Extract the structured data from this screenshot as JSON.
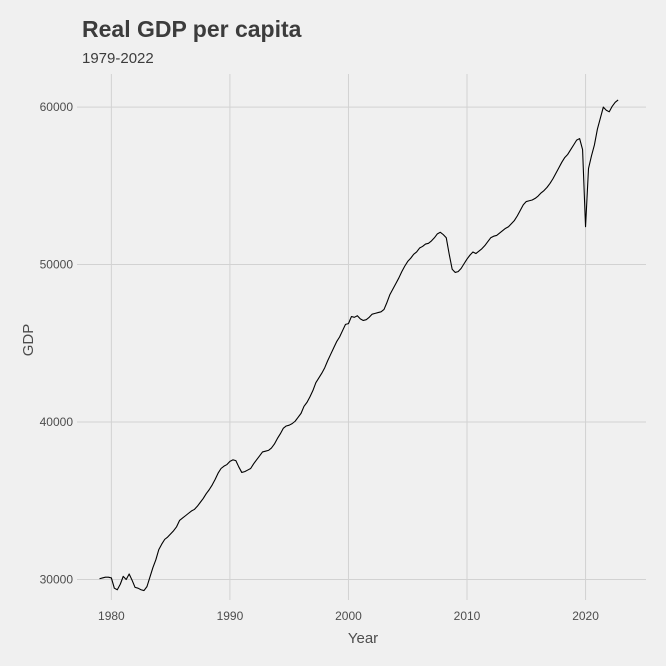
{
  "chart_data": {
    "type": "line",
    "title": "Real GDP per capita",
    "subtitle": "1979-2022",
    "xlabel": "Year",
    "ylabel": "GDP",
    "xlim": [
      1977.1,
      2025.1
    ],
    "ylim": [
      28700,
      62100
    ],
    "x_ticks": [
      1980,
      1990,
      2000,
      2010,
      2020
    ],
    "y_ticks": [
      30000,
      40000,
      50000,
      60000
    ],
    "grid": true,
    "legend": "none",
    "line_color": "#000000",
    "series": [
      {
        "x": [
          1979.0,
          1979.25,
          1979.5,
          1979.75,
          1980.0,
          1980.25,
          1980.5,
          1980.75,
          1981.0,
          1981.25,
          1981.5,
          1981.75,
          1982.0,
          1982.25,
          1982.5,
          1982.75,
          1983.0,
          1983.25,
          1983.5,
          1983.75,
          1984.0,
          1984.25,
          1984.5,
          1984.75,
          1985.0,
          1985.25,
          1985.5,
          1985.75,
          1986.0,
          1986.25,
          1986.5,
          1986.75,
          1987.0,
          1987.25,
          1987.5,
          1987.75,
          1988.0,
          1988.25,
          1988.5,
          1988.75,
          1989.0,
          1989.25,
          1989.5,
          1989.75,
          1990.0,
          1990.25,
          1990.5,
          1990.75,
          1991.0,
          1991.25,
          1991.5,
          1991.75,
          1992.0,
          1992.25,
          1992.5,
          1992.75,
          1993.0,
          1993.25,
          1993.5,
          1993.75,
          1994.0,
          1994.25,
          1994.5,
          1994.75,
          1995.0,
          1995.25,
          1995.5,
          1995.75,
          1996.0,
          1996.25,
          1996.5,
          1996.75,
          1997.0,
          1997.25,
          1997.5,
          1997.75,
          1998.0,
          1998.25,
          1998.5,
          1998.75,
          1999.0,
          1999.25,
          1999.5,
          1999.75,
          2000.0,
          2000.25,
          2000.5,
          2000.75,
          2001.0,
          2001.25,
          2001.5,
          2001.75,
          2002.0,
          2002.25,
          2002.5,
          2002.75,
          2003.0,
          2003.25,
          2003.5,
          2003.75,
          2004.0,
          2004.25,
          2004.5,
          2004.75,
          2005.0,
          2005.25,
          2005.5,
          2005.75,
          2006.0,
          2006.25,
          2006.5,
          2006.75,
          2007.0,
          2007.25,
          2007.5,
          2007.75,
          2008.0,
          2008.25,
          2008.5,
          2008.75,
          2009.0,
          2009.25,
          2009.5,
          2009.75,
          2010.0,
          2010.25,
          2010.5,
          2010.75,
          2011.0,
          2011.25,
          2011.5,
          2011.75,
          2012.0,
          2012.25,
          2012.5,
          2012.75,
          2013.0,
          2013.25,
          2013.5,
          2013.75,
          2014.0,
          2014.25,
          2014.5,
          2014.75,
          2015.0,
          2015.25,
          2015.5,
          2015.75,
          2016.0,
          2016.25,
          2016.5,
          2016.75,
          2017.0,
          2017.25,
          2017.5,
          2017.75,
          2018.0,
          2018.25,
          2018.5,
          2018.75,
          2019.0,
          2019.25,
          2019.5,
          2019.75,
          2020.0,
          2020.25,
          2020.5,
          2020.75,
          2021.0,
          2021.25,
          2021.5,
          2021.75,
          2022.0,
          2022.25,
          2022.5,
          2022.75
        ],
        "y": [
          30050,
          30100,
          30150,
          30150,
          30100,
          29450,
          29350,
          29700,
          30200,
          30000,
          30350,
          29950,
          29500,
          29450,
          29350,
          29300,
          29550,
          30150,
          30750,
          31250,
          31900,
          32250,
          32550,
          32700,
          32900,
          33100,
          33350,
          33750,
          33900,
          34050,
          34200,
          34350,
          34450,
          34650,
          34900,
          35150,
          35450,
          35700,
          36000,
          36350,
          36750,
          37050,
          37200,
          37300,
          37500,
          37600,
          37550,
          37150,
          36800,
          36850,
          36950,
          37050,
          37350,
          37600,
          37850,
          38100,
          38150,
          38200,
          38350,
          38600,
          38950,
          39250,
          39600,
          39750,
          39800,
          39900,
          40050,
          40300,
          40550,
          41000,
          41250,
          41600,
          42000,
          42500,
          42800,
          43100,
          43450,
          43900,
          44300,
          44700,
          45100,
          45400,
          45800,
          46200,
          46250,
          46700,
          46650,
          46750,
          46550,
          46450,
          46500,
          46650,
          46850,
          46900,
          46950,
          47000,
          47150,
          47600,
          48100,
          48450,
          48800,
          49150,
          49550,
          49900,
          50200,
          50400,
          50650,
          50800,
          51050,
          51150,
          51300,
          51350,
          51500,
          51700,
          51950,
          52050,
          51900,
          51700,
          50650,
          49700,
          49500,
          49550,
          49750,
          50050,
          50350,
          50600,
          50800,
          50700,
          50850,
          51000,
          51200,
          51450,
          51700,
          51800,
          51850,
          52000,
          52150,
          52300,
          52400,
          52600,
          52800,
          53100,
          53450,
          53800,
          54000,
          54050,
          54100,
          54200,
          54350,
          54550,
          54700,
          54900,
          55150,
          55450,
          55800,
          56150,
          56500,
          56800,
          57000,
          57300,
          57600,
          57900,
          58000,
          57300,
          52400,
          56100,
          56900,
          57600,
          58600,
          59300,
          60000,
          59800,
          59700,
          60050,
          60300,
          60450
        ]
      }
    ]
  }
}
